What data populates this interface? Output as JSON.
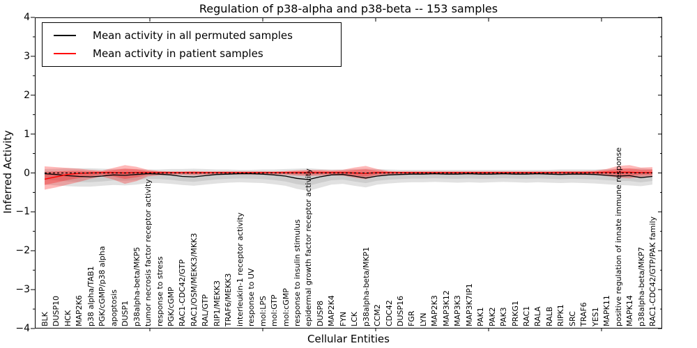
{
  "chart_data": {
    "type": "line",
    "title": "Regulation of p38-alpha and p38-beta -- 153 samples",
    "xlabel": "Cellular Entities",
    "ylabel": "Inferred Activity",
    "ylim": [
      -4,
      4
    ],
    "yticks": [
      4,
      3,
      2,
      1,
      0,
      -1,
      -2,
      -3,
      -4
    ],
    "grid": false,
    "legend_position": "upper left",
    "zero_line": 0,
    "colors": {
      "permuted_line": "#000000",
      "patient_line": "#ff0000",
      "permuted_band": "#aaaaaa",
      "patient_band": "#ff0000",
      "zero_dashed_line": "#000000"
    },
    "categories": [
      "BLK",
      "DUSP10",
      "HCK",
      "MAP2K6",
      "p38 alpha/TAB1",
      "PGK/cGMP/p38 alpha",
      "apoptosis",
      "DUSP1",
      "p38alpha-beta/MKP5",
      "tumor necrosis factor receptor activity",
      "response to stress",
      "PGK/cGMP",
      "RAC1-CDC42/GTP",
      "RAC1/OSM/MEKK3/MKK3",
      "RAL/GTP",
      "RIP1/MEKK3",
      "TRAF6/MEKK3",
      "interleukin-1 receptor activity",
      "response to UV",
      "mol:LPS",
      "mol:GTP",
      "mol:cGMP",
      "response to insulin stimulus",
      "epidermal growth factor receptor activity",
      "DUSP8",
      "MAP2K4",
      "FYN",
      "LCK",
      "p38alpha-beta/MKP1",
      "CCM2",
      "CDC42",
      "DUSP16",
      "FGR",
      "LYN",
      "MAP2K3",
      "MAP3K12",
      "MAP3K3",
      "MAP3K7IP1",
      "PAK1",
      "PAK2",
      "PAK3",
      "PRKG1",
      "RAC1",
      "RALA",
      "RALB",
      "RIPK1",
      "SRC",
      "TRAF6",
      "YES1",
      "MAPK11",
      "positive regulation of innate immune response",
      "MAPK14",
      "p38alpha-beta/MKP7",
      "RAC1-CDC42/GTP/PAK family"
    ],
    "series": [
      {
        "name": "Mean activity in all permuted samples",
        "color": "#000000",
        "values": [
          -0.02,
          -0.04,
          -0.07,
          -0.09,
          -0.1,
          -0.08,
          -0.05,
          -0.06,
          -0.04,
          -0.02,
          -0.03,
          -0.05,
          -0.09,
          -0.1,
          -0.07,
          -0.04,
          -0.03,
          -0.02,
          -0.02,
          -0.03,
          -0.05,
          -0.08,
          -0.14,
          -0.17,
          -0.1,
          -0.05,
          -0.04,
          -0.08,
          -0.13,
          -0.08,
          -0.05,
          -0.04,
          -0.03,
          -0.03,
          -0.02,
          -0.03,
          -0.03,
          -0.02,
          -0.03,
          -0.03,
          -0.02,
          -0.03,
          -0.03,
          -0.02,
          -0.03,
          -0.04,
          -0.03,
          -0.03,
          -0.04,
          -0.06,
          -0.08,
          -0.07,
          -0.12,
          -0.09
        ],
        "band_upper": [
          0.1,
          0.11,
          0.12,
          0.12,
          0.12,
          0.11,
          0.1,
          0.11,
          0.1,
          0.09,
          0.09,
          0.1,
          0.1,
          0.11,
          0.1,
          0.09,
          0.09,
          0.08,
          0.08,
          0.09,
          0.09,
          0.1,
          0.11,
          0.12,
          0.1,
          0.09,
          0.09,
          0.1,
          0.11,
          0.1,
          0.09,
          0.08,
          0.08,
          0.08,
          0.08,
          0.08,
          0.08,
          0.08,
          0.08,
          0.08,
          0.08,
          0.08,
          0.08,
          0.08,
          0.08,
          0.09,
          0.09,
          0.09,
          0.09,
          0.1,
          0.11,
          0.11,
          0.12,
          0.1
        ],
        "band_lower": [
          -0.3,
          -0.32,
          -0.34,
          -0.35,
          -0.35,
          -0.33,
          -0.31,
          -0.32,
          -0.3,
          -0.26,
          -0.26,
          -0.28,
          -0.31,
          -0.33,
          -0.3,
          -0.27,
          -0.25,
          -0.24,
          -0.25,
          -0.26,
          -0.29,
          -0.33,
          -0.41,
          -0.46,
          -0.38,
          -0.3,
          -0.28,
          -0.33,
          -0.37,
          -0.3,
          -0.27,
          -0.25,
          -0.24,
          -0.24,
          -0.23,
          -0.24,
          -0.25,
          -0.24,
          -0.25,
          -0.24,
          -0.23,
          -0.24,
          -0.25,
          -0.24,
          -0.25,
          -0.26,
          -0.25,
          -0.26,
          -0.27,
          -0.29,
          -0.31,
          -0.32,
          -0.34,
          -0.3
        ]
      },
      {
        "name": "Mean activity in patient samples",
        "color": "#ff0000",
        "values": [
          -0.16,
          -0.1,
          -0.04,
          -0.01,
          0.0,
          0.01,
          0.01,
          0.0,
          0.01,
          0.01,
          0.01,
          0.01,
          0.01,
          0.01,
          0.01,
          0.01,
          0.01,
          0.01,
          0.01,
          0.01,
          0.01,
          0.01,
          0.01,
          0.01,
          0.01,
          0.01,
          0.01,
          0.0,
          -0.01,
          0.01,
          0.01,
          0.01,
          0.01,
          0.01,
          0.01,
          0.01,
          0.01,
          0.01,
          0.01,
          0.01,
          0.01,
          0.01,
          0.01,
          0.01,
          0.01,
          0.01,
          0.01,
          0.01,
          0.01,
          0.02,
          0.02,
          0.02,
          0.01,
          0.01
        ],
        "band_upper": [
          0.17,
          0.15,
          0.13,
          0.11,
          0.08,
          0.06,
          0.13,
          0.2,
          0.16,
          0.08,
          0.05,
          0.04,
          0.04,
          0.05,
          0.04,
          0.04,
          0.04,
          0.04,
          0.04,
          0.04,
          0.04,
          0.05,
          0.07,
          0.08,
          0.08,
          0.07,
          0.08,
          0.14,
          0.18,
          0.1,
          0.05,
          0.04,
          0.04,
          0.04,
          0.04,
          0.04,
          0.04,
          0.04,
          0.04,
          0.04,
          0.04,
          0.04,
          0.04,
          0.04,
          0.04,
          0.05,
          0.05,
          0.05,
          0.06,
          0.1,
          0.18,
          0.2,
          0.14,
          0.15
        ],
        "band_lower": [
          -0.43,
          -0.37,
          -0.3,
          -0.23,
          -0.15,
          -0.09,
          -0.17,
          -0.28,
          -0.21,
          -0.09,
          -0.06,
          -0.05,
          -0.05,
          -0.06,
          -0.05,
          -0.04,
          -0.04,
          -0.04,
          -0.04,
          -0.04,
          -0.04,
          -0.05,
          -0.07,
          -0.08,
          -0.07,
          -0.06,
          -0.07,
          -0.12,
          -0.16,
          -0.08,
          -0.05,
          -0.04,
          -0.04,
          -0.04,
          -0.04,
          -0.04,
          -0.04,
          -0.04,
          -0.04,
          -0.04,
          -0.04,
          -0.04,
          -0.04,
          -0.04,
          -0.04,
          -0.04,
          -0.05,
          -0.05,
          -0.05,
          -0.08,
          -0.12,
          -0.14,
          -0.1,
          -0.08
        ]
      }
    ]
  }
}
